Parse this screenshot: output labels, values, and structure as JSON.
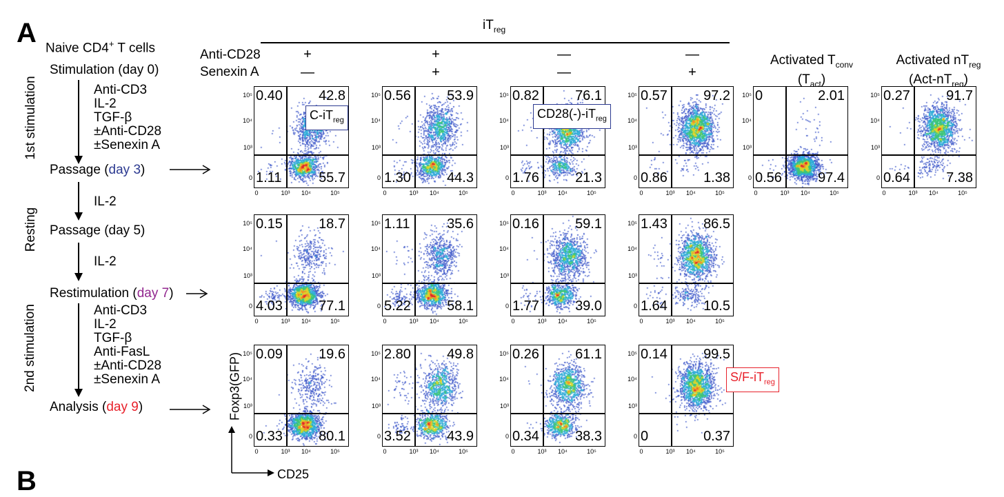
{
  "panel_letters": {
    "a": "A",
    "b": "B"
  },
  "protocol": {
    "naive": "Naive CD4",
    "naive_sup": "+",
    "naive_tail": " T cells",
    "stim_day0": "Stimulation (day 0)",
    "reagents1": [
      "Anti-CD3",
      "IL-2",
      "TGF-β",
      "±Anti-CD28",
      "±Senexin A"
    ],
    "passage3_pre": "Passage (",
    "passage3_day": "day 3",
    "passage3_post": ")",
    "il2_a": "IL-2",
    "passage5": "Passage (day 5)",
    "il2_b": "IL-2",
    "restim_pre": "Restimulation (",
    "restim_day": "day 7",
    "restim_post": ")",
    "reagents2": [
      "Anti-CD3",
      "IL-2",
      "TGF-β",
      "Anti-FasL",
      "±Anti-CD28",
      "±Senexin A"
    ],
    "analysis_pre": "Analysis (",
    "analysis_day": "day 9",
    "analysis_post": ")",
    "side_labels": [
      "1st stimulation",
      "Resting",
      "2nd stimulation"
    ],
    "colors": {
      "day3": "#2b3990",
      "day7": "#92278f",
      "day9": "#e8202a"
    }
  },
  "header": {
    "itreg_main": "iT",
    "itreg_sub": "reg",
    "row_labels": [
      "Anti-CD28",
      "Senexin A"
    ],
    "anti_cd28_signs": [
      "+",
      "+",
      "—",
      "—"
    ],
    "senexin_signs": [
      "—",
      "+",
      "—",
      "+"
    ],
    "tact_line1_main": "Activated T",
    "tact_line1_sub": "conv",
    "tact_line2_pre": "(T",
    "tact_line2_sub": "act",
    "tact_line2_post": ")",
    "nt_line1_main": "Activated nT",
    "nt_line1_sub": "reg",
    "nt_line2_pre": "(Act-nT",
    "nt_line2_sub": "reg",
    "nt_line2_post": ")"
  },
  "axes": {
    "y_label": "Foxp3(GFP)",
    "x_label": "CD25",
    "y_ticks": [
      "10⁵",
      "10⁴",
      "10³",
      "0"
    ],
    "x_ticks": [
      "0",
      "10³",
      "10⁴",
      "10⁵"
    ]
  },
  "tags": {
    "c_itreg_main": "C-iT",
    "c_itreg_sub": "reg",
    "cd28_itreg_main": "CD28(-)-iT",
    "cd28_itreg_sub": "reg",
    "sf_itreg_main": "S/F-iT",
    "sf_itreg_sub": "reg"
  },
  "plots": [
    {
      "row": 0,
      "col": 0,
      "ul": "0.40",
      "ur": "42.8",
      "ll": "1.11",
      "lr": "55.7"
    },
    {
      "row": 0,
      "col": 1,
      "ul": "0.56",
      "ur": "53.9",
      "ll": "1.30",
      "lr": "44.3"
    },
    {
      "row": 0,
      "col": 2,
      "ul": "0.82",
      "ur": "76.1",
      "ll": "1.76",
      "lr": "21.3"
    },
    {
      "row": 0,
      "col": 3,
      "ul": "0.57",
      "ur": "97.2",
      "ll": "0.86",
      "lr": "1.38"
    },
    {
      "row": 0,
      "col": 4,
      "ul": "0",
      "ur": "2.01",
      "ll": "0.56",
      "lr": "97.4"
    },
    {
      "row": 0,
      "col": 5,
      "ul": "0.27",
      "ur": "91.7",
      "ll": "0.64",
      "lr": "7.38"
    },
    {
      "row": 1,
      "col": 0,
      "ul": "0.15",
      "ur": "18.7",
      "ll": "4.03",
      "lr": "77.1"
    },
    {
      "row": 1,
      "col": 1,
      "ul": "1.11",
      "ur": "35.6",
      "ll": "5.22",
      "lr": "58.1"
    },
    {
      "row": 1,
      "col": 2,
      "ul": "0.16",
      "ur": "59.1",
      "ll": "1.77",
      "lr": "39.0"
    },
    {
      "row": 1,
      "col": 3,
      "ul": "1.43",
      "ur": "86.5",
      "ll": "1.64",
      "lr": "10.5"
    },
    {
      "row": 2,
      "col": 0,
      "ul": "0.09",
      "ur": "19.6",
      "ll": "0.33",
      "lr": "80.1"
    },
    {
      "row": 2,
      "col": 1,
      "ul": "2.80",
      "ur": "49.8",
      "ll": "3.52",
      "lr": "43.9"
    },
    {
      "row": 2,
      "col": 2,
      "ul": "0.26",
      "ur": "61.1",
      "ll": "0.34",
      "lr": "38.3"
    },
    {
      "row": 2,
      "col": 3,
      "ul": "0.14",
      "ur": "99.5",
      "ll": "0",
      "lr": "0.37"
    }
  ]
}
